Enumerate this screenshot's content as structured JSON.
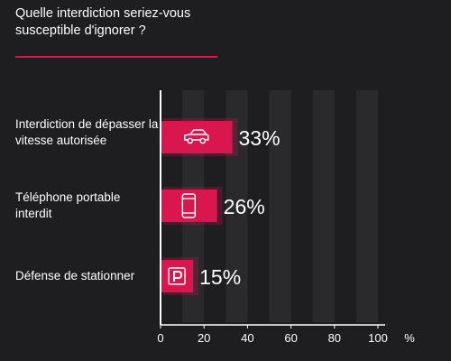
{
  "title": "Quelle interdiction seriez-vous susceptible d'ignorer ?",
  "colors": {
    "background": "#1e1d1f",
    "bar": "#d9174e",
    "accent": "#d9174e",
    "band": "#2a292b",
    "text": "#ffffff"
  },
  "chart_data": {
    "type": "bar",
    "orientation": "horizontal",
    "title": "Quelle interdiction seriez-vous susceptible d'ignorer ?",
    "categories": [
      "Interdiction de dépasser la vitesse autorisée",
      "Téléphone portable interdit",
      "Défense de stationner"
    ],
    "category_icons": [
      "car-icon",
      "phone-icon",
      "parking-icon"
    ],
    "values": [
      33,
      26,
      15
    ],
    "value_labels": [
      "33%",
      "26%",
      "15%"
    ],
    "xlim": [
      0,
      100
    ],
    "xticks": [
      0,
      20,
      40,
      60,
      80,
      100
    ],
    "x_unit": "%",
    "grid": "alternating vertical bands",
    "legend": "none"
  }
}
